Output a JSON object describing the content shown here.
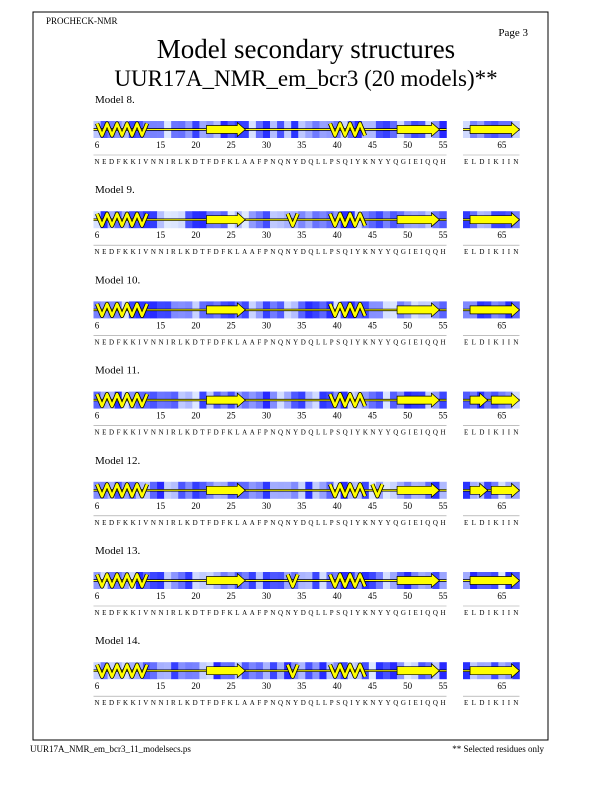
{
  "header": {
    "program": "PROCHECK-NMR",
    "page": "Page  3",
    "title": "Model secondary structures",
    "subtitle": "UUR17A_NMR_em_bcr3 (20 models)**"
  },
  "models": [
    {
      "label": "Model  8."
    },
    {
      "label": "Model  9."
    },
    {
      "label": "Model 10."
    },
    {
      "label": "Model 11."
    },
    {
      "label": "Model 12."
    },
    {
      "label": "Model 13."
    },
    {
      "label": "Model 14."
    }
  ],
  "ticks": [
    6,
    15,
    20,
    25,
    30,
    35,
    40,
    45,
    50,
    55
  ],
  "right_ticks": [
    65
  ],
  "sequence": "NEDFKKIVNNIRLKDTFDFKLAAFPNQNYDQLLPSQIYKNYYQGIEIQQH",
  "right_sequence": "ELDIKIIN",
  "footer": {
    "file": "UUR17A_NMR_em_bcr3_11_modelsecs.ps",
    "note": "** Selected residues only"
  }
}
